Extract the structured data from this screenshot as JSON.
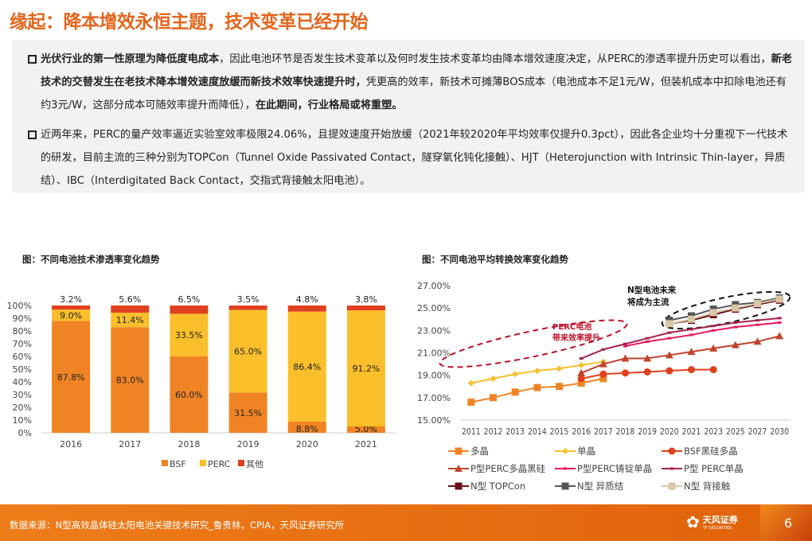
{
  "title": "缘起：降本增效永恒主题，技术变革已经开始",
  "para1": {
    "b1": "光伏行业的第一性原理为降低度电成本",
    "t1": "，因此电池环节是否发生技术变革以及何时发生技术变革均由降本增效速度决定，从PERC的渗透率提升历史可以看出，",
    "b2": "新老技术的交替发生在老技术降本增效速度放缓而新技术效率快速提升时，",
    "t2": "凭更高的效率，新技术可摊薄BOS成本（电池成本不足1元/W，但装机成本中扣除电池还有约3元/W，这部分成本可随效率提升而降低），",
    "b3": "在此期间，行业格局或将重塑。"
  },
  "para2": "近两年来，PERC的量产效率逼近实验室效率极限24.06%，且提效速度开始放缓（2021年较2020年平均效率仅提升0.3pct），因此各企业均十分重视下一代技术的研发，目前主流的三种分别为TOPCon（Tunnel Oxide Passivated Contact，隧穿氧化钝化接触）、HJT（Heterojunction with Intrinsic Thin-layer，异质结）、IBC（Interdigitated Back Contact，交指式背接触太阳电池）。",
  "chart_data": [
    {
      "type": "bar",
      "stacked": true,
      "title": "图：不同电池技术渗透率变化趋势",
      "categories": [
        "2016",
        "2017",
        "2018",
        "2019",
        "2020",
        "2021"
      ],
      "ylim": [
        0,
        100
      ],
      "yticks": [
        "0%",
        "10%",
        "20%",
        "30%",
        "40%",
        "50%",
        "60%",
        "70%",
        "80%",
        "90%",
        "100%"
      ],
      "legend_position": "bottom",
      "series": [
        {
          "name": "BSF",
          "color": "#F08424",
          "values": [
            87.8,
            83.0,
            60.0,
            31.5,
            8.8,
            5.0
          ]
        },
        {
          "name": "PERC",
          "color": "#FBBF2B",
          "values": [
            9.0,
            11.4,
            33.5,
            65.0,
            86.4,
            91.2
          ]
        },
        {
          "name": "其他",
          "color": "#E0401E",
          "values": [
            3.2,
            5.6,
            6.5,
            3.5,
            4.8,
            3.8
          ]
        }
      ]
    },
    {
      "type": "line",
      "title": "图：不同电池平均转换效率变化趋势",
      "categories": [
        "2011",
        "2012",
        "2013",
        "2014",
        "2015",
        "2016",
        "2017",
        "2018",
        "2019",
        "2020",
        "2021",
        "2023",
        "2025",
        "2027",
        "2030"
      ],
      "ylim": [
        15,
        27
      ],
      "yticks": [
        "15.00%",
        "17.00%",
        "19.00%",
        "21.00%",
        "23.00%",
        "25.00%",
        "27.00%"
      ],
      "legend_position": "bottom",
      "annotations": [
        "PERC电池带来效率提升",
        "N型电池未来将成为主流"
      ],
      "series": [
        {
          "name": "多晶",
          "color": "#F08424",
          "marker": "square",
          "values": [
            16.6,
            17.0,
            17.5,
            17.9,
            18.0,
            18.3,
            18.7,
            null,
            null,
            null,
            null,
            null,
            null,
            null,
            null
          ]
        },
        {
          "name": "单晶",
          "color": "#FBBF2B",
          "marker": "diamond",
          "values": [
            18.3,
            18.7,
            19.1,
            19.4,
            19.6,
            19.9,
            20.2,
            null,
            null,
            null,
            null,
            null,
            null,
            null,
            null
          ]
        },
        {
          "name": "BSF黑硅多晶",
          "color": "#E0401E",
          "marker": "circle",
          "values": [
            null,
            null,
            null,
            null,
            null,
            18.7,
            19.1,
            19.2,
            19.3,
            19.4,
            19.5,
            19.5,
            null,
            null,
            null
          ]
        },
        {
          "name": "P型PERC多晶黑硅",
          "color": "#C0432B",
          "marker": "triangle",
          "values": [
            null,
            null,
            null,
            null,
            null,
            19.2,
            20.0,
            20.5,
            20.5,
            20.8,
            21.1,
            21.4,
            21.7,
            22.0,
            22.5
          ]
        },
        {
          "name": "P型PERC铸锭单晶",
          "color": "#E8195A",
          "marker": "dash",
          "values": [
            null,
            null,
            null,
            null,
            null,
            null,
            null,
            21.6,
            22.0,
            22.3,
            22.6,
            23.0,
            23.3,
            23.5,
            23.7
          ]
        },
        {
          "name": "P型 PERC单晶",
          "color": "#A5234E",
          "marker": "dash",
          "values": [
            null,
            null,
            null,
            null,
            null,
            20.5,
            21.3,
            21.8,
            22.3,
            22.8,
            23.1,
            23.4,
            23.7,
            23.9,
            24.1
          ]
        },
        {
          "name": "N型 TOPCon",
          "color": "#6B0F1A",
          "marker": "square",
          "values": [
            null,
            null,
            null,
            null,
            null,
            null,
            null,
            null,
            null,
            23.6,
            23.9,
            24.4,
            24.9,
            25.3,
            25.7
          ]
        },
        {
          "name": "N型 异质结",
          "color": "#555555",
          "marker": "square",
          "values": [
            null,
            null,
            null,
            null,
            null,
            null,
            null,
            null,
            null,
            23.9,
            24.3,
            24.9,
            25.3,
            25.5,
            25.9
          ]
        },
        {
          "name": "N型 背接触",
          "color": "#D9C7A7",
          "marker": "square",
          "values": [
            null,
            null,
            null,
            null,
            null,
            null,
            null,
            null,
            null,
            23.6,
            24.0,
            24.6,
            25.0,
            25.4,
            25.8
          ]
        }
      ]
    }
  ],
  "footer": {
    "source": "数据来源：N型高效晶体硅太阳电池关键技术研究_鲁贵林，CPIA，天风证券研究所",
    "logo": "天风证券",
    "logo_sub": "TF SECURITIES",
    "page": "6"
  }
}
